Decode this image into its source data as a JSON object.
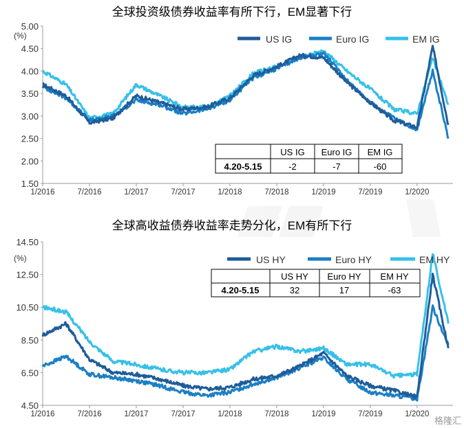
{
  "charts": [
    {
      "title": "全球投资级债券收益率有所下行，EM显著下行",
      "unit": "(%)",
      "y_ticks": [
        "5.00",
        "4.50",
        "4.00",
        "3.50",
        "3.00",
        "2.50",
        "2.00",
        "1.50"
      ],
      "x_ticks": [
        "1/2016",
        "7/2016",
        "1/2017",
        "7/2017",
        "1/2018",
        "7/2018",
        "1/2019",
        "7/2019",
        "1/2020"
      ],
      "legend": [
        "US IG",
        "Euro IG",
        "EM IG"
      ],
      "table": {
        "headers": [
          "",
          "US IG",
          "Euro IG",
          "EM IG"
        ],
        "row_label": "4.20-5.15",
        "values": [
          "-2",
          "-7",
          "-60"
        ]
      }
    },
    {
      "title": "全球高收益债券收益率走势分化，EM有所下行",
      "unit": "(%)",
      "y_ticks": [
        "14.50",
        "12.50",
        "10.50",
        "8.50",
        "6.50",
        "4.50"
      ],
      "x_ticks": [
        "1/2016",
        "7/2016",
        "1/2017",
        "7/2017",
        "1/2018",
        "7/2018",
        "1/2019",
        "7/2019",
        "1/2020"
      ],
      "legend": [
        "US HY",
        "Euro HY",
        "EM HY"
      ],
      "table": {
        "headers": [
          "",
          "US HY",
          "Euro HY",
          "EM HY"
        ],
        "row_label": "4.20-5.15",
        "values": [
          "32",
          "17",
          "-63"
        ]
      }
    }
  ],
  "watermark": "格隆汇",
  "colors": {
    "series1": "#1f5c99",
    "series2": "#1b7fc4",
    "series3": "#36c0e8"
  },
  "chart_data": [
    {
      "type": "line",
      "title": "全球投资级债券收益率有所下行，EM显著下行",
      "ylabel": "(%)",
      "ylim": [
        1.5,
        5.0
      ],
      "x": [
        "2016-01",
        "2016-04",
        "2016-07",
        "2016-10",
        "2017-01",
        "2017-04",
        "2017-07",
        "2017-10",
        "2018-01",
        "2018-04",
        "2018-07",
        "2018-10",
        "2019-01",
        "2019-04",
        "2019-07",
        "2019-10",
        "2020-01",
        "2020-03",
        "2020-05"
      ],
      "series": [
        {
          "name": "US IG",
          "values": [
            3.7,
            3.45,
            2.85,
            2.95,
            3.45,
            3.3,
            3.15,
            3.2,
            3.4,
            3.9,
            4.1,
            4.35,
            4.3,
            3.75,
            3.3,
            2.9,
            2.75,
            4.55,
            2.8
          ]
        },
        {
          "name": "Euro IG",
          "values": [
            3.65,
            3.4,
            2.9,
            3.0,
            3.35,
            3.25,
            3.05,
            3.15,
            3.35,
            3.85,
            4.05,
            4.3,
            4.4,
            3.8,
            3.3,
            2.95,
            2.7,
            4.0,
            2.5
          ]
        },
        {
          "name": "EM IG",
          "values": [
            4.0,
            3.7,
            2.95,
            3.05,
            3.7,
            3.45,
            3.2,
            3.2,
            3.45,
            3.95,
            4.1,
            4.3,
            4.45,
            4.0,
            3.6,
            3.15,
            3.05,
            4.3,
            3.25
          ]
        }
      ]
    },
    {
      "type": "line",
      "title": "全球高收益债券收益率走势分化，EM有所下行",
      "ylabel": "(%)",
      "ylim": [
        4.5,
        14.5
      ],
      "x": [
        "2016-01",
        "2016-04",
        "2016-07",
        "2016-10",
        "2017-01",
        "2017-04",
        "2017-07",
        "2017-10",
        "2018-01",
        "2018-04",
        "2018-07",
        "2018-10",
        "2019-01",
        "2019-04",
        "2019-07",
        "2019-10",
        "2020-01",
        "2020-03",
        "2020-05"
      ],
      "series": [
        {
          "name": "US HY",
          "values": [
            8.8,
            9.5,
            7.3,
            6.5,
            6.4,
            6.1,
            5.7,
            5.5,
            5.6,
            6.1,
            6.3,
            6.9,
            7.7,
            6.3,
            5.7,
            5.4,
            5.0,
            12.5,
            8.0
          ]
        },
        {
          "name": "Euro HY",
          "values": [
            6.9,
            7.5,
            6.4,
            6.2,
            6.0,
            5.7,
            5.3,
            5.1,
            5.3,
            5.8,
            6.2,
            6.8,
            7.4,
            6.1,
            5.3,
            5.1,
            4.9,
            10.5,
            8.2
          ]
        },
        {
          "name": "EM HY",
          "values": [
            10.5,
            10.2,
            8.4,
            7.2,
            7.0,
            6.7,
            6.5,
            6.5,
            6.7,
            7.8,
            8.1,
            7.8,
            8.0,
            7.0,
            7.0,
            6.3,
            6.4,
            13.8,
            9.5
          ]
        }
      ]
    }
  ]
}
